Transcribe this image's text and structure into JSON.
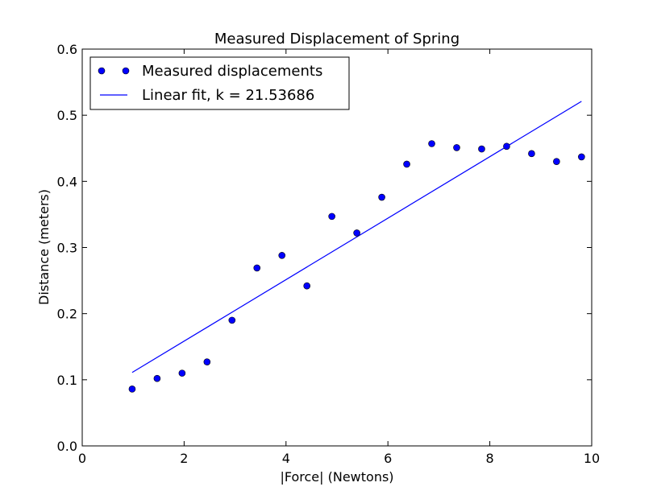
{
  "chart_data": {
    "type": "scatter",
    "title": "Measured Displacement of Spring",
    "xlabel": "|Force| (Newtons)",
    "ylabel": "Distance (meters)",
    "xlim": [
      0,
      10
    ],
    "ylim": [
      0,
      0.6
    ],
    "x_ticks": [
      0,
      2,
      4,
      6,
      8,
      10
    ],
    "y_ticks": [
      0.0,
      0.1,
      0.2,
      0.3,
      0.4,
      0.5,
      0.6
    ],
    "x_tick_labels": [
      "0",
      "2",
      "4",
      "6",
      "8",
      "10"
    ],
    "y_tick_labels": [
      "0.0",
      "0.1",
      "0.2",
      "0.3",
      "0.4",
      "0.5",
      "0.6"
    ],
    "grid": false,
    "legend_position": "top-left",
    "series": [
      {
        "name": "Measured displacements",
        "kind": "points",
        "color": "#0000ff",
        "x": [
          0.98,
          1.47,
          1.96,
          2.45,
          2.94,
          3.43,
          3.92,
          4.41,
          4.9,
          5.39,
          5.88,
          6.37,
          6.86,
          7.35,
          7.84,
          8.33,
          8.82,
          9.31,
          9.8
        ],
        "y": [
          0.086,
          0.102,
          0.11,
          0.127,
          0.19,
          0.269,
          0.288,
          0.242,
          0.347,
          0.322,
          0.376,
          0.426,
          0.457,
          0.451,
          0.449,
          0.453,
          0.442,
          0.43,
          0.437
        ]
      },
      {
        "name": "Linear fit, k = 21.53686",
        "kind": "line",
        "color": "#0000ff",
        "x": [
          0.98,
          9.8
        ],
        "y": [
          0.111,
          0.521
        ]
      }
    ]
  }
}
